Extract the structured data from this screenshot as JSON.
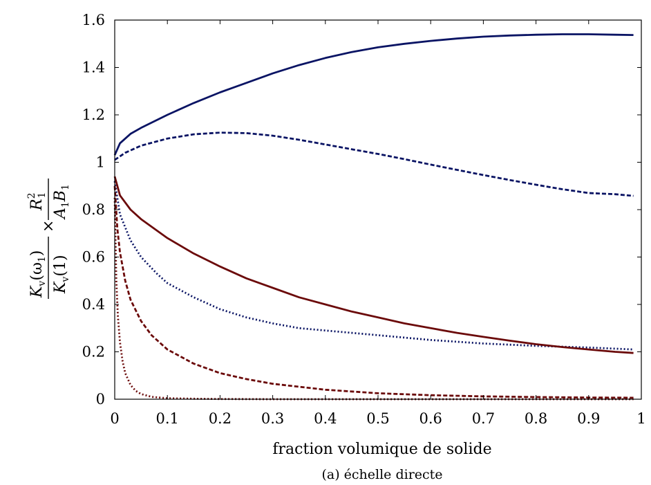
{
  "chart_data": {
    "type": "line",
    "xlabel": "fraction volumique de solide",
    "ylabel": {
      "left_num": "K",
      "left_num_sub": "v",
      "left_num_arg": "(ω",
      "left_num_arg_sub": "1",
      "left_num_close": ")",
      "left_den": "K",
      "left_den_sub": "v",
      "left_den_arg": "(1)",
      "times": "×",
      "right_num": "R",
      "right_num_sub": "1",
      "right_num_sup": "2",
      "right_den_a": "A",
      "right_den_a_sub": "1",
      "right_den_b": "B",
      "right_den_b_sub": "1"
    },
    "caption": "(a) échelle directe",
    "xlim": [
      0,
      1
    ],
    "ylim": [
      0,
      1.6
    ],
    "xticks": [
      0,
      0.1,
      0.2,
      0.3,
      0.4,
      0.5,
      0.6,
      0.7,
      0.8,
      0.9,
      1
    ],
    "xtick_labels": [
      "0",
      "0.1",
      "0.2",
      "0.3",
      "0.4",
      "0.5",
      "0.6",
      "0.7",
      "0.8",
      "0.9",
      "1"
    ],
    "yticks": [
      0,
      0.2,
      0.4,
      0.6,
      0.8,
      1,
      1.2,
      1.4,
      1.6
    ],
    "ytick_labels": [
      "0",
      "0.2",
      "0.4",
      "0.6",
      "0.8",
      "1",
      "1.2",
      "1.4",
      "1.6"
    ],
    "grid": false,
    "series": [
      {
        "color": "#0a1464",
        "dash": "solid",
        "x": [
          0,
          0.01,
          0.03,
          0.05,
          0.1,
          0.15,
          0.2,
          0.25,
          0.3,
          0.35,
          0.4,
          0.45,
          0.5,
          0.55,
          0.6,
          0.65,
          0.7,
          0.75,
          0.8,
          0.85,
          0.9,
          0.95,
          0.985
        ],
        "y": [
          1.03,
          1.08,
          1.12,
          1.145,
          1.2,
          1.25,
          1.295,
          1.335,
          1.375,
          1.41,
          1.44,
          1.465,
          1.485,
          1.5,
          1.512,
          1.522,
          1.53,
          1.535,
          1.538,
          1.54,
          1.54,
          1.538,
          1.537
        ]
      },
      {
        "color": "#0a1464",
        "dash": "dashed",
        "x": [
          0,
          0.02,
          0.05,
          0.1,
          0.15,
          0.2,
          0.25,
          0.3,
          0.35,
          0.4,
          0.45,
          0.5,
          0.55,
          0.6,
          0.65,
          0.7,
          0.75,
          0.8,
          0.85,
          0.9,
          0.95,
          0.985
        ],
        "y": [
          1.01,
          1.04,
          1.07,
          1.1,
          1.118,
          1.125,
          1.123,
          1.112,
          1.095,
          1.075,
          1.055,
          1.035,
          1.013,
          0.99,
          0.968,
          0.946,
          0.925,
          0.905,
          0.886,
          0.87,
          0.865,
          0.858
        ]
      },
      {
        "color": "#0a1464",
        "dash": "dotted",
        "x": [
          0,
          0.01,
          0.03,
          0.05,
          0.08,
          0.1,
          0.15,
          0.2,
          0.25,
          0.3,
          0.35,
          0.4,
          0.5,
          0.6,
          0.7,
          0.8,
          0.9,
          0.985
        ],
        "y": [
          0.92,
          0.78,
          0.67,
          0.6,
          0.53,
          0.49,
          0.43,
          0.38,
          0.345,
          0.32,
          0.3,
          0.29,
          0.27,
          0.25,
          0.235,
          0.225,
          0.218,
          0.21
        ]
      },
      {
        "color": "#6b0a0a",
        "dash": "solid",
        "x": [
          0,
          0.01,
          0.03,
          0.05,
          0.1,
          0.15,
          0.2,
          0.25,
          0.3,
          0.35,
          0.4,
          0.45,
          0.5,
          0.55,
          0.6,
          0.65,
          0.7,
          0.75,
          0.8,
          0.85,
          0.9,
          0.95,
          0.985
        ],
        "y": [
          0.94,
          0.86,
          0.8,
          0.76,
          0.68,
          0.615,
          0.56,
          0.51,
          0.47,
          0.43,
          0.4,
          0.37,
          0.345,
          0.32,
          0.3,
          0.28,
          0.263,
          0.247,
          0.232,
          0.22,
          0.21,
          0.2,
          0.195
        ]
      },
      {
        "color": "#6b0a0a",
        "dash": "dashed",
        "x": [
          0,
          0.005,
          0.01,
          0.02,
          0.03,
          0.05,
          0.07,
          0.1,
          0.15,
          0.2,
          0.25,
          0.3,
          0.4,
          0.5,
          0.6,
          0.7,
          0.8,
          0.9,
          0.985
        ],
        "y": [
          0.9,
          0.72,
          0.62,
          0.5,
          0.42,
          0.33,
          0.27,
          0.21,
          0.15,
          0.11,
          0.085,
          0.065,
          0.04,
          0.025,
          0.017,
          0.012,
          0.009,
          0.007,
          0.006
        ]
      },
      {
        "color": "#6b0a0a",
        "dash": "dotted",
        "x": [
          0,
          0.003,
          0.006,
          0.01,
          0.015,
          0.02,
          0.03,
          0.04,
          0.05,
          0.07,
          0.1,
          0.15,
          0.2,
          0.3,
          0.5,
          0.7,
          0.985
        ],
        "y": [
          0.85,
          0.5,
          0.35,
          0.24,
          0.16,
          0.11,
          0.06,
          0.035,
          0.022,
          0.01,
          0.004,
          0.002,
          0.001,
          0.0,
          0.0,
          0.0,
          0.0
        ]
      }
    ]
  }
}
